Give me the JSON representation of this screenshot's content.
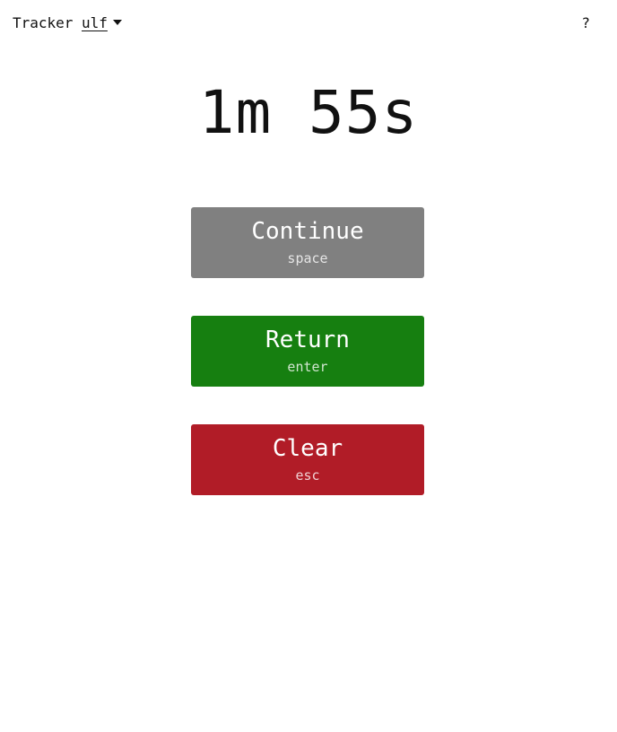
{
  "header": {
    "app_title": "Tracker",
    "user": "ulf",
    "help": "?"
  },
  "timer": {
    "display": "1m 55s"
  },
  "actions": {
    "continue": {
      "label": "Continue",
      "key": "space",
      "color": "#808080"
    },
    "return": {
      "label": "Return",
      "key": "enter",
      "color": "#167f10"
    },
    "clear": {
      "label": "Clear",
      "key": "esc",
      "color": "#b11c27"
    }
  },
  "icons": {
    "user_dropdown": "caret-down-icon"
  }
}
